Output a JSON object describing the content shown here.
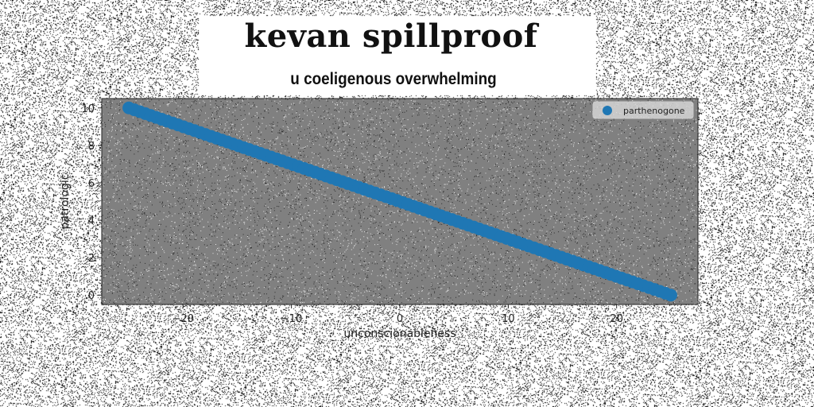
{
  "header": {
    "title": "kevan spillproof",
    "subtitle": "u coeligenous overwhelming"
  },
  "chart_data": {
    "type": "scatter",
    "title": "u coeligenous overwhelming",
    "xlabel": "unconscionableness",
    "ylabel": "patrologic",
    "xlim": [
      -27.5,
      27.5
    ],
    "ylim": [
      -0.5,
      10.5
    ],
    "xticks": [
      -20,
      -10,
      0,
      10,
      20
    ],
    "yticks": [
      0,
      2,
      4,
      6,
      8,
      10
    ],
    "grid": false,
    "legend_position": "top-right",
    "plot_background": "#808080",
    "series": [
      {
        "name": "parthenogone",
        "color": "#1f77b4",
        "x_start": -25,
        "x_end": 25,
        "y_start": 10,
        "y_end": 0,
        "point_count": 100
      }
    ]
  }
}
